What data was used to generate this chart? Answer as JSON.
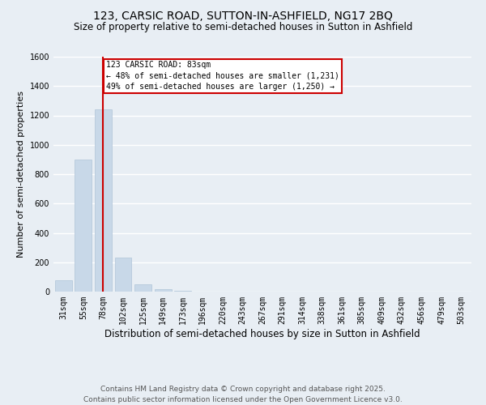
{
  "title_line1": "123, CARSIC ROAD, SUTTON-IN-ASHFIELD, NG17 2BQ",
  "title_line2": "Size of property relative to semi-detached houses in Sutton in Ashfield",
  "xlabel": "Distribution of semi-detached houses by size in Sutton in Ashfield",
  "ylabel": "Number of semi-detached properties",
  "categories": [
    "31sqm",
    "55sqm",
    "78sqm",
    "102sqm",
    "125sqm",
    "149sqm",
    "173sqm",
    "196sqm",
    "220sqm",
    "243sqm",
    "267sqm",
    "291sqm",
    "314sqm",
    "338sqm",
    "361sqm",
    "385sqm",
    "409sqm",
    "432sqm",
    "456sqm",
    "479sqm",
    "503sqm"
  ],
  "values": [
    80,
    900,
    1240,
    230,
    50,
    15,
    5,
    0,
    0,
    0,
    0,
    0,
    0,
    0,
    0,
    0,
    0,
    0,
    0,
    0,
    0
  ],
  "bar_color": "#c8d8e8",
  "bar_edge_color": "#b0c4d8",
  "marker_bar_index": 2,
  "marker_label": "123 CARSIC ROAD: 83sqm",
  "marker_line_color": "#cc0000",
  "annotation_line1": "← 48% of semi-detached houses are smaller (1,231)",
  "annotation_line2": "49% of semi-detached houses are larger (1,250) →",
  "ylim": [
    0,
    1600
  ],
  "yticks": [
    0,
    200,
    400,
    600,
    800,
    1000,
    1200,
    1400,
    1600
  ],
  "background_color": "#e8eef4",
  "plot_bg_color": "#e8eef4",
  "footer_line1": "Contains HM Land Registry data © Crown copyright and database right 2025.",
  "footer_line2": "Contains public sector information licensed under the Open Government Licence v3.0.",
  "title_fontsize": 10,
  "subtitle_fontsize": 8.5,
  "axis_label_fontsize": 8,
  "tick_fontsize": 7,
  "footer_fontsize": 6.5
}
